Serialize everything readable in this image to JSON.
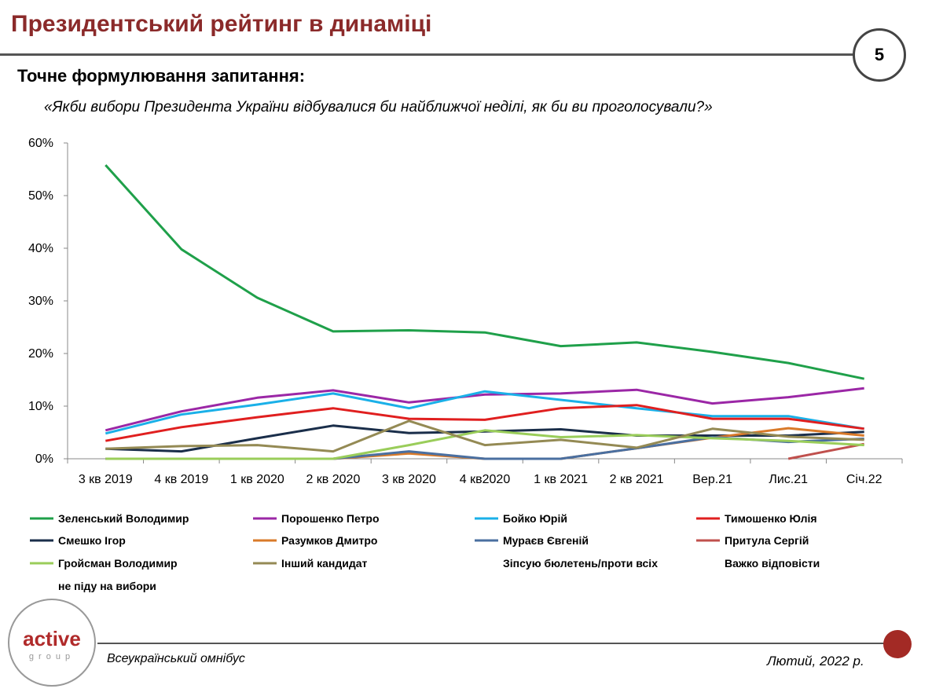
{
  "header": {
    "title": "Президентський рейтинг в динаміці",
    "page_number": "5",
    "subtitle": "Точне формулювання запитання:",
    "question": "«Якби вибори Президента України відбувалися би найближчої неділі, як би ви проголосували?»"
  },
  "chart_data": {
    "type": "line",
    "categories": [
      "3 кв 2019",
      "4 кв 2019",
      "1 кв 2020",
      "2 кв 2020",
      "3 кв 2020",
      "4 кв2020",
      "1 кв 2021",
      "2 кв 2021",
      "Вер.21",
      "Лис.21",
      "Січ.22"
    ],
    "ylim": [
      0,
      60
    ],
    "yticks": [
      "0%",
      "10%",
      "20%",
      "30%",
      "40%",
      "50%",
      "60%"
    ],
    "grid": false,
    "legend_position": "bottom",
    "series": [
      {
        "name": "Зеленський Володимир",
        "color": "#1fa04a",
        "values": [
          55.8,
          39.8,
          30.6,
          24.2,
          24.4,
          24.0,
          21.4,
          22.1,
          20.3,
          18.2,
          15.2
        ]
      },
      {
        "name": "Порошенко Петро",
        "color": "#9b27a6",
        "values": [
          5.4,
          9.0,
          11.6,
          13.0,
          10.7,
          12.2,
          12.4,
          13.1,
          10.5,
          11.7,
          13.4
        ]
      },
      {
        "name": "Бойко Юрій",
        "color": "#1ab0e8",
        "values": [
          4.8,
          8.4,
          10.3,
          12.4,
          9.6,
          12.8,
          11.2,
          9.6,
          8.1,
          8.1,
          5.7
        ]
      },
      {
        "name": "Тимошенко Юлія",
        "color": "#e01f1f",
        "values": [
          3.4,
          6.0,
          7.9,
          9.6,
          7.6,
          7.4,
          9.6,
          10.2,
          7.6,
          7.6,
          5.7
        ]
      },
      {
        "name": "Смешко Ігор",
        "color": "#1a2e4a",
        "values": [
          1.9,
          1.4,
          3.9,
          6.3,
          4.9,
          5.2,
          5.6,
          4.4,
          4.4,
          4.4,
          5.1
        ]
      },
      {
        "name": "Разумков Дмитро",
        "color": "#d97a2a",
        "values": [
          0,
          0,
          0,
          0,
          1.0,
          0,
          0,
          2.0,
          4.0,
          5.8,
          4.4
        ]
      },
      {
        "name": "Мураєв Євгеній",
        "color": "#4a6fa0",
        "values": [
          0,
          0,
          0,
          0,
          1.4,
          0,
          0,
          2.0,
          4.1,
          3.2,
          3.8
        ]
      },
      {
        "name": "Притула Сергій",
        "color": "#c0504d",
        "values": [
          null,
          null,
          null,
          null,
          null,
          null,
          null,
          null,
          null,
          0,
          2.8
        ]
      },
      {
        "name": "Гройсман Володимир",
        "color": "#9acd5a",
        "values": [
          0,
          0,
          0,
          0,
          2.6,
          5.4,
          4.1,
          4.5,
          3.9,
          3.4,
          2.6
        ]
      },
      {
        "name": "Інший кандидат",
        "color": "#948a54",
        "values": [
          1.9,
          2.4,
          2.6,
          1.4,
          7.2,
          2.6,
          3.6,
          2.1,
          5.7,
          4.2,
          3.6
        ]
      }
    ],
    "legend_extra": [
      "Зіпсую бюлетень/проти всіх",
      "Важко відповісти",
      "не піду на вибори"
    ]
  },
  "footer": {
    "logo_word": "active",
    "logo_sub": "group",
    "left": "Всеукраїнський омнібус",
    "right": "Лютий, 2022 р."
  }
}
